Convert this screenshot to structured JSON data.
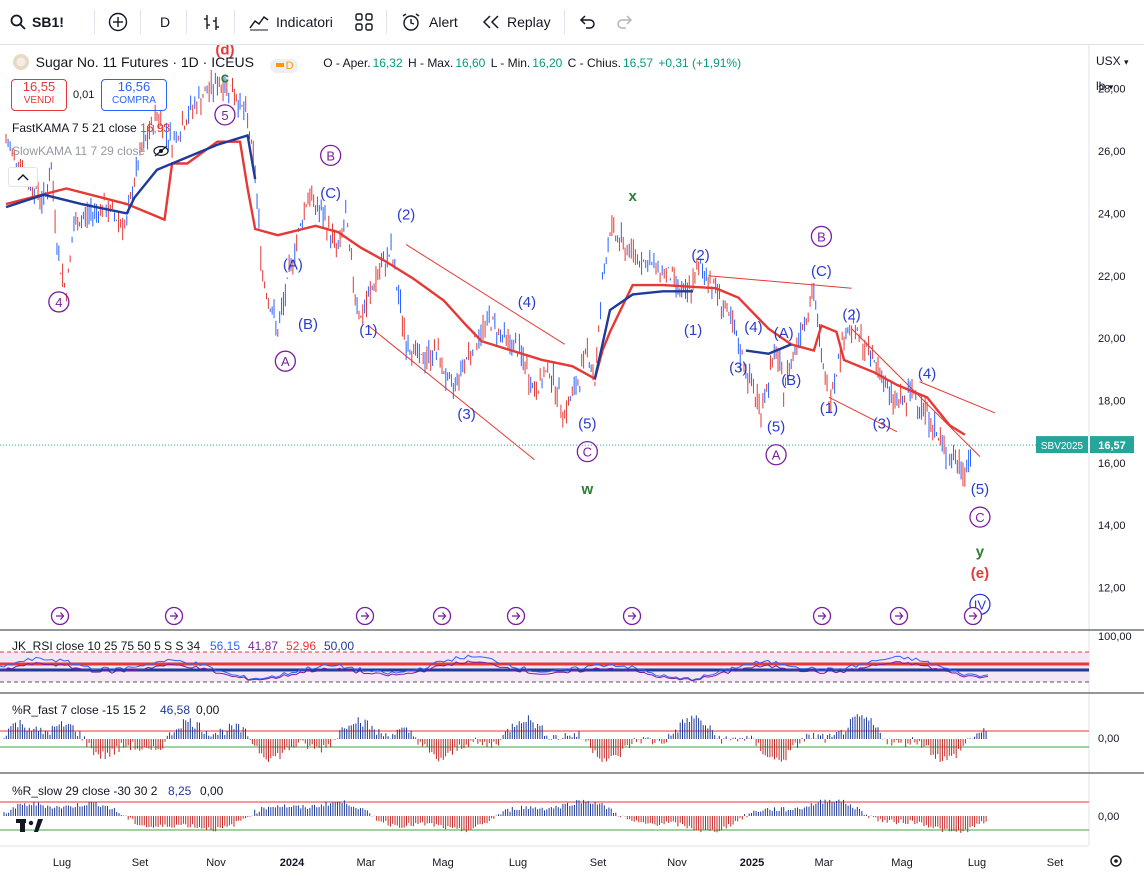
{
  "toolbar": {
    "symbol": "SB1!",
    "interval": "D",
    "indicators_label": "Indicatori",
    "alert_label": "Alert",
    "replay_label": "Replay"
  },
  "header": {
    "title": "Sugar No. 11 Futures · 1D · ICEUS",
    "badge": "D",
    "ohlc": {
      "o_label": "O - Aper.",
      "o": "16,32",
      "h_label": "H - Max.",
      "h": "16,60",
      "l_label": "L - Min.",
      "l": "16,20",
      "c_label": "C - Chius.",
      "c": "16,57",
      "change": "+0,31 (+1,91%)"
    },
    "sell_price": "16,55",
    "sell_label": "VENDI",
    "spread": "0,01",
    "buy_price": "16,56",
    "buy_label": "COMPRA",
    "fastkama_label": "FastKAMA 7 5 21 close",
    "fastkama_value": "16,93",
    "slowkama_label": "SlowKAMA 11 7 29 close"
  },
  "right_controls": {
    "currency": "USX",
    "unit": "lb"
  },
  "colors": {
    "up": "#2962ff",
    "down": "#e53935",
    "fastkama": "#e53935",
    "slowkama": "#1e3a9a",
    "wave_blue": "#2a3bd0",
    "wave_purple": "#7b1fa2",
    "wave_green": "#2e7d32",
    "wave_red": "#e53935",
    "price_tag": "#26a69a"
  },
  "chart_data": [
    {
      "type": "line",
      "title": "Sugar No. 11 Futures · 1D · ICEUS",
      "x_ticks": [
        "Lug",
        "Set",
        "Nov",
        "2024",
        "Mar",
        "Mag",
        "Lug",
        "Set",
        "Nov",
        "2025",
        "Mar",
        "Mag",
        "Lug",
        "Set"
      ],
      "y_ticks": [
        "28,00",
        "26,00",
        "24,00",
        "22,00",
        "20,00",
        "18,00",
        "16,00",
        "14,00",
        "12,00"
      ],
      "ylim": [
        10.8,
        29.4
      ],
      "series": [
        {
          "name": "FastKAMA 7 5 21 close",
          "points": [
            [
              0,
              24.3
            ],
            [
              8,
              24.8
            ],
            [
              16,
              24.3
            ],
            [
              21,
              23.8
            ],
            [
              22,
              25.6
            ],
            [
              24,
              25.6
            ],
            [
              28,
              26.3
            ],
            [
              31,
              26.3
            ],
            [
              32,
              24.8
            ],
            [
              33,
              23.5
            ],
            [
              36,
              23.3
            ],
            [
              41,
              23.6
            ],
            [
              44,
              23.4
            ],
            [
              47,
              22.9
            ],
            [
              50,
              22.5
            ],
            [
              54,
              21.9
            ],
            [
              58,
              21.2
            ],
            [
              61,
              20.4
            ],
            [
              63,
              19.9
            ],
            [
              67,
              19.6
            ],
            [
              71,
              19.3
            ],
            [
              75,
              19.1
            ],
            [
              78,
              18.7
            ],
            [
              79,
              19.6
            ],
            [
              80,
              20.2
            ],
            [
              83,
              21.7
            ],
            [
              87,
              21.7
            ],
            [
              94,
              21.6
            ],
            [
              97,
              21.3
            ],
            [
              101,
              20.3
            ],
            [
              104,
              19.8
            ],
            [
              107,
              19.6
            ],
            [
              108,
              20.4
            ],
            [
              110,
              20.2
            ],
            [
              111,
              19.3
            ],
            [
              115,
              18.9
            ],
            [
              118,
              18.5
            ],
            [
              122,
              18.1
            ],
            [
              125,
              17.2
            ],
            [
              127,
              16.9
            ]
          ]
        },
        {
          "name": "SlowKAMA 11 7 29 close",
          "points": [
            [
              0,
              24.2
            ],
            [
              5,
              24.6
            ],
            [
              10,
              24.3
            ],
            [
              16,
              24.0
            ],
            [
              17,
              24.5
            ],
            [
              20,
              25.4
            ],
            [
              25,
              25.9
            ],
            [
              28,
              26.2
            ],
            [
              32,
              26.5
            ],
            [
              33,
              25.1
            ]
          ]
        },
        {
          "name": "SlowKAMA (2)",
          "points": [
            [
              78,
              18.7
            ],
            [
              79,
              19.8
            ],
            [
              80,
              20.9
            ],
            [
              83,
              21.4
            ],
            [
              87,
              21.5
            ],
            [
              91,
              21.5
            ]
          ]
        },
        {
          "name": "SlowKAMA (3)",
          "points": [
            [
              98,
              19.6
            ],
            [
              101,
              19.5
            ],
            [
              104,
              19.8
            ]
          ]
        }
      ],
      "price_path": [
        [
          0,
          26.3
        ],
        [
          3,
          25.1
        ],
        [
          5,
          24.4
        ],
        [
          6,
          25.4
        ],
        [
          7,
          22.5
        ],
        [
          8,
          21.5
        ],
        [
          9,
          23.6
        ],
        [
          11,
          24.0
        ],
        [
          13,
          24.2
        ],
        [
          16,
          23.6
        ],
        [
          17,
          25.1
        ],
        [
          18,
          26.0
        ],
        [
          20,
          27.2
        ],
        [
          22,
          26.3
        ],
        [
          25,
          27.5
        ],
        [
          28,
          28.2
        ],
        [
          30,
          28.0
        ],
        [
          32,
          27.0
        ],
        [
          33,
          25.3
        ],
        [
          34,
          22.0
        ],
        [
          36,
          20.2
        ],
        [
          38,
          22.6
        ],
        [
          40,
          24.6
        ],
        [
          42,
          23.9
        ],
        [
          44,
          22.8
        ],
        [
          45,
          23.9
        ],
        [
          46,
          21.8
        ],
        [
          47,
          20.6
        ],
        [
          49,
          21.9
        ],
        [
          51,
          22.8
        ],
        [
          53,
          19.9
        ],
        [
          55,
          19.3
        ],
        [
          57,
          19.6
        ],
        [
          59,
          18.3
        ],
        [
          61,
          19.4
        ],
        [
          64,
          20.6
        ],
        [
          66,
          20.0
        ],
        [
          68,
          19.6
        ],
        [
          70,
          18.3
        ],
        [
          72,
          19.0
        ],
        [
          74,
          17.6
        ],
        [
          76,
          18.7
        ],
        [
          77,
          19.7
        ],
        [
          78,
          18.6
        ],
        [
          79,
          21.8
        ],
        [
          80,
          23.5
        ],
        [
          82,
          22.9
        ],
        [
          85,
          22.4
        ],
        [
          88,
          22.0
        ],
        [
          90,
          21.3
        ],
        [
          92,
          22.3
        ],
        [
          94,
          21.6
        ],
        [
          96,
          20.5
        ],
        [
          98,
          19.0
        ],
        [
          100,
          17.7
        ],
        [
          102,
          19.6
        ],
        [
          103,
          18.4
        ],
        [
          105,
          20.1
        ],
        [
          107,
          21.5
        ],
        [
          108,
          19.4
        ],
        [
          109,
          18.0
        ],
        [
          111,
          20.1
        ],
        [
          112,
          20.4
        ],
        [
          114,
          19.6
        ],
        [
          116,
          18.9
        ],
        [
          117,
          18.1
        ],
        [
          119,
          17.9
        ],
        [
          120,
          18.3
        ],
        [
          122,
          17.6
        ],
        [
          124,
          16.5
        ],
        [
          126,
          16.0
        ],
        [
          127,
          15.7
        ],
        [
          128,
          16.6
        ]
      ],
      "wave_labels": [
        {
          "text": "(d)",
          "x": 29,
          "y": 29.1,
          "color": "red"
        },
        {
          "text": "c",
          "x": 29,
          "y": 28.2,
          "color": "green"
        },
        {
          "text": "5",
          "x": 29,
          "y": 27.0,
          "color": "purple",
          "circled": true
        },
        {
          "text": "4",
          "x": 7,
          "y": 21.0,
          "color": "purple",
          "circled": true
        },
        {
          "text": "B",
          "x": 43,
          "y": 25.7,
          "color": "purple",
          "circled": true
        },
        {
          "text": "(C)",
          "x": 43,
          "y": 24.5,
          "color": "blue"
        },
        {
          "text": "(A)",
          "x": 38,
          "y": 22.2,
          "color": "blue"
        },
        {
          "text": "(B)",
          "x": 40,
          "y": 20.3,
          "color": "blue"
        },
        {
          "text": "A",
          "x": 37,
          "y": 19.1,
          "color": "purple",
          "circled": true
        },
        {
          "text": "(2)",
          "x": 53,
          "y": 23.8,
          "color": "blue"
        },
        {
          "text": "(1)",
          "x": 48,
          "y": 20.1,
          "color": "blue"
        },
        {
          "text": "(3)",
          "x": 61,
          "y": 17.4,
          "color": "blue"
        },
        {
          "text": "(4)",
          "x": 69,
          "y": 21.0,
          "color": "blue"
        },
        {
          "text": "(5)",
          "x": 77,
          "y": 17.1,
          "color": "blue"
        },
        {
          "text": "C",
          "x": 77,
          "y": 16.2,
          "color": "purple",
          "circled": true
        },
        {
          "text": "w",
          "x": 77,
          "y": 15.0,
          "color": "green"
        },
        {
          "text": "x",
          "x": 83,
          "y": 24.4,
          "color": "green"
        },
        {
          "text": "(2)",
          "x": 92,
          "y": 22.5,
          "color": "blue"
        },
        {
          "text": "(1)",
          "x": 91,
          "y": 20.1,
          "color": "blue"
        },
        {
          "text": "(4)",
          "x": 99,
          "y": 20.2,
          "color": "blue"
        },
        {
          "text": "(3)",
          "x": 97,
          "y": 18.9,
          "color": "blue"
        },
        {
          "text": "(A)",
          "x": 103,
          "y": 20.0,
          "color": "blue"
        },
        {
          "text": "(B)",
          "x": 104,
          "y": 18.5,
          "color": "blue"
        },
        {
          "text": "(5)",
          "x": 102,
          "y": 17.0,
          "color": "blue"
        },
        {
          "text": "A",
          "x": 102,
          "y": 16.1,
          "color": "purple",
          "circled": true
        },
        {
          "text": "B",
          "x": 108,
          "y": 23.1,
          "color": "purple",
          "circled": true
        },
        {
          "text": "(C)",
          "x": 108,
          "y": 22.0,
          "color": "blue"
        },
        {
          "text": "(2)",
          "x": 112,
          "y": 20.6,
          "color": "blue"
        },
        {
          "text": "(1)",
          "x": 109,
          "y": 17.6,
          "color": "blue"
        },
        {
          "text": "(3)",
          "x": 116,
          "y": 17.1,
          "color": "blue"
        },
        {
          "text": "(4)",
          "x": 122,
          "y": 18.7,
          "color": "blue"
        },
        {
          "text": "(5)",
          "x": 129,
          "y": 15.0,
          "color": "blue"
        },
        {
          "text": "C",
          "x": 129,
          "y": 14.1,
          "color": "purple",
          "circled": true
        },
        {
          "text": "y",
          "x": 129,
          "y": 13.0,
          "color": "green"
        },
        {
          "text": "(e)",
          "x": 129,
          "y": 12.3,
          "color": "red"
        },
        {
          "text": "IV",
          "x": 129,
          "y": 11.3,
          "color": "blue",
          "circled": true
        }
      ],
      "price_tag": {
        "name": "SBV2025",
        "value": "16,57"
      }
    },
    {
      "type": "line",
      "title": "JK_RSI close 10 25 75 50 5 S S 34",
      "values_text": [
        "56,15",
        "41,87",
        "52,96",
        "50,00"
      ],
      "y_ticks": [
        "100,00"
      ]
    },
    {
      "type": "bar",
      "title": "%R_fast 7 close -15 15 2",
      "values_text": [
        "46,58",
        "0,00"
      ],
      "y_ticks": [
        "0,00"
      ]
    },
    {
      "type": "bar",
      "title": "%R_slow 29 close -30 30 2",
      "values_text": [
        "8,25",
        "0,00"
      ],
      "y_ticks": [
        "0,00"
      ]
    }
  ]
}
